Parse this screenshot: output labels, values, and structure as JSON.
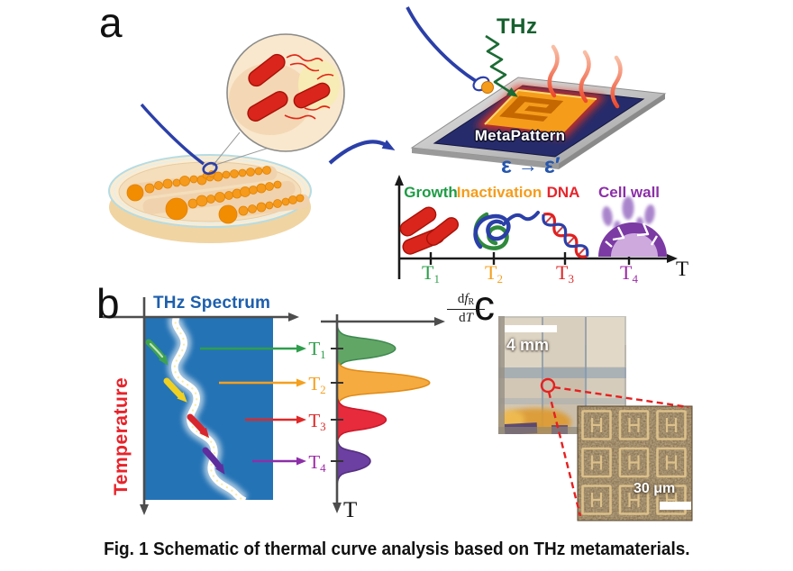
{
  "figure": {
    "caption": "Fig. 1 Schematic of thermal curve analysis based on THz metamaterials."
  },
  "panel_a": {
    "label": "a",
    "thz_beam_label": "THz",
    "chip_label": "MetaPattern",
    "permittivity": {
      "before": "ε",
      "arrow": "→",
      "after": "ε′"
    },
    "temperature_axis": {
      "end_label": "T",
      "stages": [
        {
          "name": "Growth",
          "color": "#1E9C45",
          "tick": "T",
          "tick_sub": "1",
          "tick_color": "#2F9E4C"
        },
        {
          "name": "Inactivation",
          "color": "#F59C1B",
          "tick": "T",
          "tick_sub": "2",
          "tick_color": "#F5A01E"
        },
        {
          "name": "DNA",
          "color": "#E8242C",
          "tick": "T",
          "tick_sub": "3",
          "tick_color": "#E02828"
        },
        {
          "name": "Cell wall",
          "color": "#8C2FA8",
          "tick": "T",
          "tick_sub": "4",
          "tick_color": "#9C2BA6"
        }
      ]
    }
  },
  "panel_b": {
    "label": "b",
    "spectrum_title": "THz Spectrum",
    "y_axis_label": "Temperature",
    "derivative": {
      "d": "d",
      "f": "f",
      "sub": "R",
      "T": "T"
    },
    "axis_end_label": "T",
    "transitions": [
      {
        "label": "T",
        "sub": "1",
        "label_color": "#2F9E4C",
        "peak_color": "#62A665",
        "peak_stroke": "#3E8A50",
        "peak_rel": 0.63
      },
      {
        "label": "T",
        "sub": "2",
        "label_color": "#F5A01E",
        "peak_color": "#F6AB40",
        "peak_stroke": "#E08C17",
        "peak_rel": 1.0
      },
      {
        "label": "T",
        "sub": "3",
        "label_color": "#E02828",
        "peak_color": "#E72A3C",
        "peak_stroke": "#C81A2C",
        "peak_rel": 0.53
      },
      {
        "label": "T",
        "sub": "4",
        "label_color": "#9C2BA6",
        "peak_color": "#6C3FA2",
        "peak_stroke": "#55307F",
        "peak_rel": 0.36
      }
    ]
  },
  "panel_c": {
    "label": "c",
    "photo_scale_bar": "4 mm",
    "inset_scale_bar": "30 μm"
  },
  "colors": {
    "thz_green": "#17602F",
    "blue_text": "#2456AE",
    "spectrum_blue": "#2473B5",
    "temperature_red": "#E8232B",
    "loop_blue": "#2B3FA8",
    "colony_orange": "#F59A1C",
    "bacteria_red": "#D9251B"
  }
}
